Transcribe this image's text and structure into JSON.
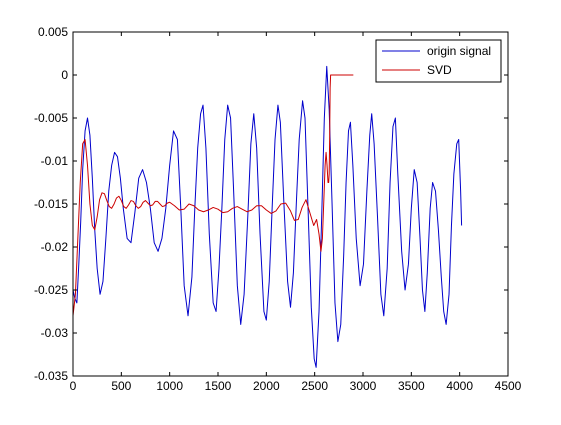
{
  "chart_data": {
    "type": "line",
    "title": "",
    "xlabel": "",
    "ylabel": "",
    "xlim": [
      0,
      4500
    ],
    "ylim": [
      -0.035,
      0.005
    ],
    "xticks": [
      0,
      500,
      1000,
      1500,
      2000,
      2500,
      3000,
      3500,
      4000,
      4500
    ],
    "xtick_labels": [
      "0",
      "500",
      "1000",
      "1500",
      "2000",
      "2500",
      "3000",
      "3500",
      "4000",
      "4500"
    ],
    "yticks": [
      0.005,
      0,
      -0.005,
      -0.01,
      -0.015,
      -0.02,
      -0.025,
      -0.03,
      -0.035
    ],
    "ytick_labels": [
      "0.005",
      "0",
      "-0.005",
      "-0.01",
      "-0.015",
      "-0.02",
      "-0.025",
      "-0.03",
      "-0.035"
    ],
    "grid": false,
    "legend_position": "top-right",
    "series": [
      {
        "name": "origin signal",
        "color": "#0000cc",
        "points": [
          [
            0,
            -0.025
          ],
          [
            20,
            -0.026
          ],
          [
            40,
            -0.0265
          ],
          [
            60,
            -0.022
          ],
          [
            80,
            -0.017
          ],
          [
            100,
            -0.011
          ],
          [
            125,
            -0.0065
          ],
          [
            150,
            -0.005
          ],
          [
            175,
            -0.007
          ],
          [
            200,
            -0.012
          ],
          [
            225,
            -0.018
          ],
          [
            250,
            -0.0225
          ],
          [
            280,
            -0.0255
          ],
          [
            310,
            -0.024
          ],
          [
            340,
            -0.019
          ],
          [
            370,
            -0.0135
          ],
          [
            400,
            -0.0105
          ],
          [
            430,
            -0.009
          ],
          [
            460,
            -0.0095
          ],
          [
            490,
            -0.012
          ],
          [
            520,
            -0.0155
          ],
          [
            560,
            -0.019
          ],
          [
            600,
            -0.0195
          ],
          [
            640,
            -0.016
          ],
          [
            680,
            -0.012
          ],
          [
            720,
            -0.011
          ],
          [
            760,
            -0.0125
          ],
          [
            800,
            -0.0155
          ],
          [
            840,
            -0.0195
          ],
          [
            880,
            -0.0205
          ],
          [
            920,
            -0.019
          ],
          [
            960,
            -0.0155
          ],
          [
            1000,
            -0.0105
          ],
          [
            1040,
            -0.0065
          ],
          [
            1080,
            -0.0075
          ],
          [
            1115,
            -0.0155
          ],
          [
            1150,
            -0.0245
          ],
          [
            1190,
            -0.028
          ],
          [
            1230,
            -0.0235
          ],
          [
            1260,
            -0.0155
          ],
          [
            1290,
            -0.0085
          ],
          [
            1320,
            -0.0045
          ],
          [
            1345,
            -0.0035
          ],
          [
            1375,
            -0.0085
          ],
          [
            1410,
            -0.0185
          ],
          [
            1450,
            -0.0265
          ],
          [
            1480,
            -0.0275
          ],
          [
            1510,
            -0.0225
          ],
          [
            1540,
            -0.0155
          ],
          [
            1570,
            -0.0075
          ],
          [
            1600,
            -0.0035
          ],
          [
            1630,
            -0.005
          ],
          [
            1660,
            -0.013
          ],
          [
            1700,
            -0.0245
          ],
          [
            1735,
            -0.029
          ],
          [
            1770,
            -0.0255
          ],
          [
            1810,
            -0.016
          ],
          [
            1840,
            -0.008
          ],
          [
            1870,
            -0.0045
          ],
          [
            1900,
            -0.0085
          ],
          [
            1935,
            -0.0185
          ],
          [
            1975,
            -0.0275
          ],
          [
            2000,
            -0.0285
          ],
          [
            2030,
            -0.024
          ],
          [
            2060,
            -0.0155
          ],
          [
            2090,
            -0.0075
          ],
          [
            2120,
            -0.0035
          ],
          [
            2145,
            -0.0055
          ],
          [
            2180,
            -0.0145
          ],
          [
            2220,
            -0.024
          ],
          [
            2250,
            -0.027
          ],
          [
            2280,
            -0.023
          ],
          [
            2310,
            -0.015
          ],
          [
            2340,
            -0.0075
          ],
          [
            2375,
            -0.003
          ],
          [
            2400,
            -0.005
          ],
          [
            2430,
            -0.015
          ],
          [
            2465,
            -0.027
          ],
          [
            2495,
            -0.033
          ],
          [
            2515,
            -0.034
          ],
          [
            2545,
            -0.0275
          ],
          [
            2575,
            -0.0155
          ],
          [
            2600,
            -0.005
          ],
          [
            2625,
            0.001
          ],
          [
            2650,
            -0.004
          ],
          [
            2680,
            -0.015
          ],
          [
            2710,
            -0.0265
          ],
          [
            2740,
            -0.031
          ],
          [
            2770,
            -0.029
          ],
          [
            2800,
            -0.021
          ],
          [
            2825,
            -0.0125
          ],
          [
            2850,
            -0.0065
          ],
          [
            2870,
            -0.0055
          ],
          [
            2895,
            -0.0105
          ],
          [
            2930,
            -0.019
          ],
          [
            2970,
            -0.0245
          ],
          [
            3005,
            -0.022
          ],
          [
            3040,
            -0.0135
          ],
          [
            3070,
            -0.007
          ],
          [
            3090,
            -0.0045
          ],
          [
            3115,
            -0.008
          ],
          [
            3150,
            -0.0165
          ],
          [
            3185,
            -0.0255
          ],
          [
            3215,
            -0.028
          ],
          [
            3250,
            -0.0225
          ],
          [
            3280,
            -0.0125
          ],
          [
            3310,
            -0.006
          ],
          [
            3335,
            -0.005
          ],
          [
            3360,
            -0.0115
          ],
          [
            3400,
            -0.0205
          ],
          [
            3435,
            -0.025
          ],
          [
            3470,
            -0.022
          ],
          [
            3500,
            -0.0155
          ],
          [
            3530,
            -0.011
          ],
          [
            3560,
            -0.0125
          ],
          [
            3590,
            -0.019
          ],
          [
            3615,
            -0.025
          ],
          [
            3640,
            -0.0275
          ],
          [
            3665,
            -0.023
          ],
          [
            3695,
            -0.0155
          ],
          [
            3720,
            -0.0125
          ],
          [
            3750,
            -0.0135
          ],
          [
            3780,
            -0.018
          ],
          [
            3810,
            -0.0235
          ],
          [
            3835,
            -0.0275
          ],
          [
            3860,
            -0.029
          ],
          [
            3890,
            -0.0255
          ],
          [
            3915,
            -0.0175
          ],
          [
            3940,
            -0.0115
          ],
          [
            3970,
            -0.008
          ],
          [
            3990,
            -0.0075
          ],
          [
            4010,
            -0.0135
          ],
          [
            4020,
            -0.0175
          ]
        ]
      },
      {
        "name": "SVD",
        "color": "#cc0000",
        "points": [
          [
            0,
            -0.028
          ],
          [
            25,
            -0.0255
          ],
          [
            50,
            -0.019
          ],
          [
            75,
            -0.0125
          ],
          [
            100,
            -0.008
          ],
          [
            125,
            -0.0075
          ],
          [
            150,
            -0.0105
          ],
          [
            175,
            -0.015
          ],
          [
            200,
            -0.0175
          ],
          [
            225,
            -0.018
          ],
          [
            250,
            -0.0165
          ],
          [
            275,
            -0.0145
          ],
          [
            300,
            -0.0137
          ],
          [
            325,
            -0.0138
          ],
          [
            350,
            -0.0146
          ],
          [
            375,
            -0.0153
          ],
          [
            400,
            -0.0155
          ],
          [
            425,
            -0.015
          ],
          [
            450,
            -0.0143
          ],
          [
            475,
            -0.0141
          ],
          [
            500,
            -0.0146
          ],
          [
            525,
            -0.0153
          ],
          [
            550,
            -0.0155
          ],
          [
            575,
            -0.0151
          ],
          [
            600,
            -0.0146
          ],
          [
            625,
            -0.0147
          ],
          [
            650,
            -0.0152
          ],
          [
            675,
            -0.0155
          ],
          [
            700,
            -0.0153
          ],
          [
            725,
            -0.0148
          ],
          [
            750,
            -0.0146
          ],
          [
            775,
            -0.0149
          ],
          [
            800,
            -0.0152
          ],
          [
            825,
            -0.0151
          ],
          [
            850,
            -0.0147
          ],
          [
            875,
            -0.0147
          ],
          [
            900,
            -0.015
          ],
          [
            925,
            -0.0153
          ],
          [
            950,
            -0.0152
          ],
          [
            975,
            -0.0149
          ],
          [
            1000,
            -0.0148
          ],
          [
            1050,
            -0.0152
          ],
          [
            1100,
            -0.0157
          ],
          [
            1150,
            -0.0156
          ],
          [
            1200,
            -0.015
          ],
          [
            1250,
            -0.0152
          ],
          [
            1300,
            -0.0157
          ],
          [
            1350,
            -0.0159
          ],
          [
            1400,
            -0.0157
          ],
          [
            1450,
            -0.0154
          ],
          [
            1500,
            -0.0156
          ],
          [
            1550,
            -0.016
          ],
          [
            1600,
            -0.0159
          ],
          [
            1650,
            -0.0155
          ],
          [
            1700,
            -0.0153
          ],
          [
            1750,
            -0.0156
          ],
          [
            1800,
            -0.0159
          ],
          [
            1850,
            -0.0157
          ],
          [
            1900,
            -0.0152
          ],
          [
            1950,
            -0.0152
          ],
          [
            2000,
            -0.0157
          ],
          [
            2050,
            -0.0161
          ],
          [
            2100,
            -0.0158
          ],
          [
            2150,
            -0.015
          ],
          [
            2200,
            -0.0149
          ],
          [
            2250,
            -0.0158
          ],
          [
            2290,
            -0.0169
          ],
          [
            2330,
            -0.0168
          ],
          [
            2370,
            -0.0154
          ],
          [
            2410,
            -0.0145
          ],
          [
            2450,
            -0.016
          ],
          [
            2490,
            -0.0175
          ],
          [
            2520,
            -0.0168
          ],
          [
            2545,
            -0.0185
          ],
          [
            2565,
            -0.0205
          ],
          [
            2580,
            -0.019
          ],
          [
            2595,
            -0.0145
          ],
          [
            2608,
            -0.0105
          ],
          [
            2618,
            -0.009
          ],
          [
            2628,
            -0.0105
          ],
          [
            2638,
            -0.0125
          ],
          [
            2645,
            -0.0125
          ],
          [
            2650,
            -0.0115
          ],
          [
            2655,
            -0.0075
          ],
          [
            2660,
            -0.0015
          ],
          [
            2665,
            0.0
          ],
          [
            2900,
            0.0
          ]
        ]
      }
    ]
  }
}
